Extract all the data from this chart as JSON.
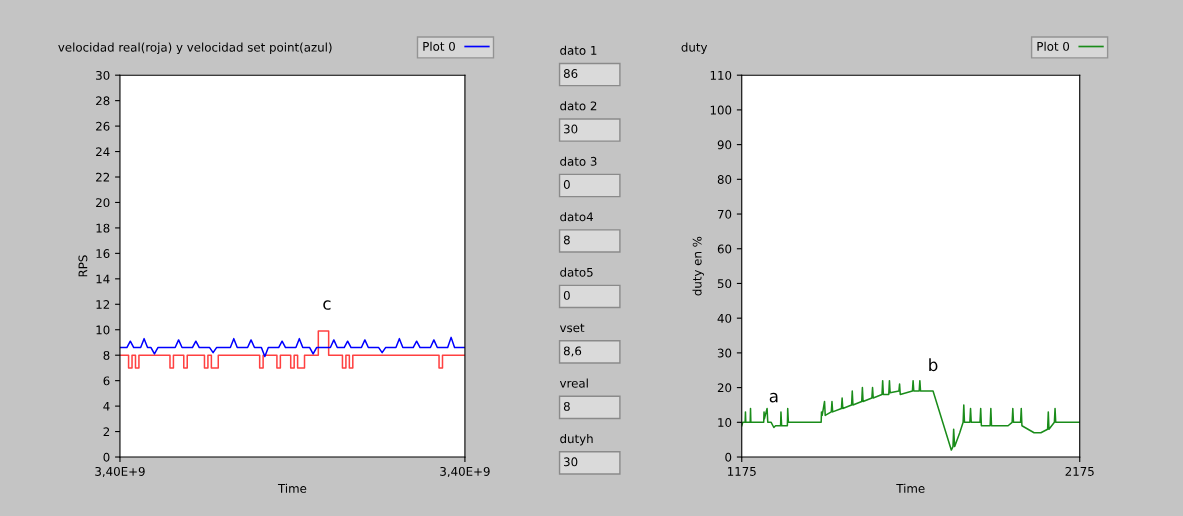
{
  "chart_data": [
    {
      "type": "line",
      "title": "velocidad real(roja) y velocidad set point(azul)",
      "xlabel": "Time",
      "ylabel": "RPS",
      "categories": [
        "3,40E+9",
        null,
        null,
        null,
        null,
        null,
        null,
        null,
        null,
        null,
        null,
        null,
        null,
        null,
        null,
        null,
        null,
        null,
        null,
        null,
        null,
        null,
        null,
        null,
        null,
        null,
        null,
        null,
        null,
        null,
        null,
        null,
        null,
        null,
        null,
        null,
        null,
        null,
        null,
        null,
        null,
        null,
        null,
        null,
        null,
        null,
        null,
        null,
        null,
        null,
        null,
        null,
        null,
        null,
        null,
        null,
        null,
        null,
        null,
        null,
        null,
        null,
        null,
        null,
        null,
        null,
        null,
        null,
        null,
        null,
        null,
        null,
        null,
        null,
        null,
        null,
        null,
        null,
        null,
        null,
        null,
        null,
        null,
        null,
        null,
        null,
        null,
        null,
        null,
        null,
        null,
        null,
        null,
        null,
        null,
        null,
        null,
        null,
        null,
        null,
        "3,40E+9"
      ],
      "ylim": [
        0,
        30
      ],
      "yticks": [
        0,
        2,
        4,
        6,
        8,
        10,
        12,
        14,
        16,
        18,
        20,
        22,
        24,
        26,
        28,
        30
      ],
      "legend": "top right",
      "grid": false,
      "annotations": [
        {
          "text": "c",
          "y": 10
        }
      ],
      "series": [
        {
          "type": "step",
          "color": "#ff4040",
          "values": [
            8,
            8,
            8,
            7,
            8,
            7,
            8,
            8,
            8,
            8,
            8,
            8,
            8,
            8,
            8,
            7,
            8,
            8,
            8,
            7,
            8,
            8,
            8,
            8,
            8,
            7,
            8,
            7,
            7,
            8,
            8,
            8,
            8,
            8,
            8,
            8,
            8,
            8,
            8,
            8,
            8,
            7,
            8,
            8,
            8,
            8,
            7,
            8,
            8,
            8,
            7,
            8,
            7,
            7,
            8,
            8,
            8,
            8,
            9.9,
            9.9,
            9.9,
            8,
            8,
            8,
            8,
            7,
            8,
            7,
            8,
            8,
            8,
            8,
            8,
            8,
            8,
            8,
            8,
            8,
            8,
            8,
            8,
            8,
            8,
            8,
            8,
            8,
            8,
            8,
            8,
            8,
            8,
            8,
            8,
            7,
            8,
            8,
            8,
            8,
            8,
            8,
            8
          ]
        },
        {
          "name": "Plot 0",
          "color": "#0000ff",
          "values": [
            8.6,
            8.6,
            8.6,
            9.1,
            8.6,
            8.6,
            8.6,
            9.3,
            8.6,
            8.6,
            8.1,
            8.6,
            8.6,
            8.6,
            8.6,
            8.6,
            8.6,
            9.2,
            8.6,
            8.6,
            8.6,
            8.6,
            9.1,
            8.6,
            8.6,
            8.6,
            8.6,
            8.2,
            8.6,
            8.6,
            8.6,
            8.6,
            8.6,
            9.3,
            8.6,
            8.6,
            8.6,
            8.6,
            9.2,
            8.6,
            8.6,
            8.6,
            7.9,
            8.6,
            8.6,
            8.6,
            8.6,
            9.1,
            8.6,
            8.6,
            8.6,
            8.6,
            9.3,
            8.6,
            8.6,
            8.6,
            8.1,
            8.6,
            8.6,
            8.6,
            8.6,
            8.6,
            9.2,
            8.6,
            8.6,
            8.6,
            9.1,
            8.6,
            8.6,
            8.6,
            8.6,
            9.2,
            8.6,
            8.6,
            8.6,
            8.6,
            8.2,
            8.6,
            8.6,
            8.6,
            8.6,
            9.3,
            8.6,
            8.6,
            8.6,
            8.6,
            9.1,
            8.6,
            8.6,
            8.6,
            8.6,
            9.2,
            8.6,
            8.6,
            8.6,
            8.6,
            9.4,
            8.6,
            8.6,
            8.6,
            8.6
          ]
        }
      ]
    },
    {
      "type": "other",
      "annotations": [
        "dato 1",
        "86",
        "dato 2",
        "30",
        "dato 3",
        "0",
        "dato4",
        "8",
        "dato5",
        "0",
        "vset",
        "8,6",
        "vreal",
        "8",
        "dutyh",
        "30"
      ]
    },
    {
      "type": "line",
      "title": "duty",
      "xlabel": "Time",
      "ylabel": "duty en %",
      "xlim": [
        1175,
        2175
      ],
      "xticks": [
        1175,
        2175
      ],
      "ylim": [
        0,
        110
      ],
      "yticks": [
        0,
        10,
        20,
        30,
        40,
        50,
        60,
        70,
        80,
        90,
        100,
        110
      ],
      "legend": "top right",
      "grid": false,
      "annotations": [
        {
          "text": "a",
          "x": 1270,
          "y": 10
        },
        {
          "text": "b",
          "x": 1741,
          "y": 19
        }
      ],
      "series": [
        {
          "name": "Plot 0",
          "color": "#1a8c1a",
          "x": [
            1175,
            1178,
            1185,
            1186,
            1187,
            1200,
            1201,
            1202,
            1240,
            1241,
            1242,
            1250,
            1252,
            1262,
            1270,
            1275,
            1290,
            1291,
            1293,
            1310,
            1311,
            1313,
            1330,
            1410,
            1411,
            1413,
            1420,
            1422,
            1440,
            1442,
            1444,
            1470,
            1472,
            1474,
            1500,
            1502,
            1504,
            1530,
            1532,
            1534,
            1560,
            1562,
            1564,
            1590,
            1592,
            1594,
            1610,
            1612,
            1614,
            1640,
            1642,
            1644,
            1680,
            1682,
            1684,
            1700,
            1702,
            1704,
            1741,
            1795,
            1800,
            1802,
            1805,
            1820,
            1830,
            1832,
            1834,
            1850,
            1852,
            1854,
            1880,
            1882,
            1884,
            1910,
            1912,
            1914,
            1963,
            1975,
            1977,
            1979,
            2000,
            2002,
            2004,
            2040,
            2060,
            2080,
            2082,
            2084,
            2100,
            2102,
            2104,
            2175
          ],
          "values": [
            9,
            10,
            10,
            13,
            10,
            10,
            14,
            10,
            10,
            13,
            11,
            14,
            10,
            10,
            8.5,
            9,
            9,
            13,
            9,
            9,
            14,
            10,
            10,
            10,
            13,
            12,
            16,
            12,
            13,
            16,
            13,
            14,
            17,
            14,
            15,
            19,
            15,
            16,
            20,
            16,
            17,
            20,
            17,
            18,
            22,
            18,
            18,
            22,
            18.5,
            19,
            21,
            18,
            19,
            22,
            19,
            19,
            22,
            19,
            19,
            2,
            3,
            8,
            3,
            7,
            10,
            15,
            10,
            10,
            14,
            10,
            10,
            14,
            9,
            9,
            14,
            9,
            9,
            10,
            14,
            10,
            10,
            14,
            9,
            7,
            7,
            8,
            13,
            8,
            10,
            14,
            10,
            10
          ]
        }
      ]
    }
  ]
}
